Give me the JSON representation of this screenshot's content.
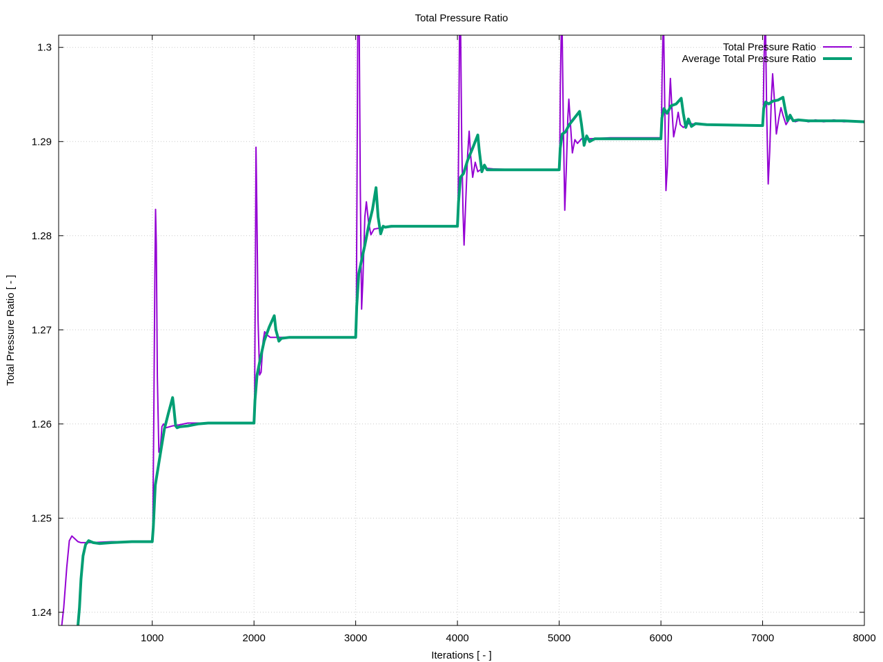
{
  "chart_data": {
    "type": "line",
    "title": "Total Pressure Ratio",
    "xlabel": "Iterations [ - ]",
    "ylabel": "Total Pressure Ratio [ - ]",
    "xlim": [
      80,
      8000
    ],
    "ylim": [
      1.2386,
      1.3013
    ],
    "x_ticks": [
      1000,
      2000,
      3000,
      4000,
      5000,
      6000,
      7000,
      8000
    ],
    "y_ticks": [
      1.24,
      1.25,
      1.26,
      1.27,
      1.28,
      1.29,
      1.3
    ],
    "grid": true,
    "legend_position": "top-right",
    "series": [
      {
        "name": "Total Pressure Ratio",
        "color": "#9400d3",
        "points": [
          [
            100,
            1.2375
          ],
          [
            130,
            1.2405
          ],
          [
            160,
            1.2448
          ],
          [
            185,
            1.2476
          ],
          [
            210,
            1.2481
          ],
          [
            240,
            1.2478
          ],
          [
            270,
            1.2475
          ],
          [
            300,
            1.2474
          ],
          [
            400,
            1.2474
          ],
          [
            600,
            1.2475
          ],
          [
            1000,
            1.2475
          ],
          [
            1005,
            1.2478
          ],
          [
            1015,
            1.26
          ],
          [
            1025,
            1.275
          ],
          [
            1033,
            1.2828
          ],
          [
            1040,
            1.279
          ],
          [
            1050,
            1.265
          ],
          [
            1065,
            1.257
          ],
          [
            1080,
            1.2575
          ],
          [
            1095,
            1.2597
          ],
          [
            1110,
            1.26
          ],
          [
            1135,
            1.2596
          ],
          [
            1170,
            1.2597
          ],
          [
            1200,
            1.2598
          ],
          [
            1260,
            1.2599
          ],
          [
            1350,
            1.2601
          ],
          [
            1500,
            1.2601
          ],
          [
            2000,
            1.2601
          ],
          [
            2005,
            1.2605
          ],
          [
            2013,
            1.275
          ],
          [
            2020,
            1.2894
          ],
          [
            2028,
            1.283
          ],
          [
            2040,
            1.271
          ],
          [
            2055,
            1.2652
          ],
          [
            2070,
            1.2655
          ],
          [
            2090,
            1.2688
          ],
          [
            2105,
            1.2698
          ],
          [
            2125,
            1.2695
          ],
          [
            2160,
            1.2692
          ],
          [
            2250,
            1.2692
          ],
          [
            2500,
            1.2692
          ],
          [
            3000,
            1.2692
          ],
          [
            3005,
            1.27
          ],
          [
            3013,
            1.285
          ],
          [
            3020,
            1.3013
          ],
          [
            3025,
            1.3013
          ],
          [
            3035,
            1.3013
          ],
          [
            3045,
            1.285
          ],
          [
            3058,
            1.2722
          ],
          [
            3070,
            1.275
          ],
          [
            3090,
            1.282
          ],
          [
            3105,
            1.2836
          ],
          [
            3125,
            1.2815
          ],
          [
            3150,
            1.2801
          ],
          [
            3180,
            1.2807
          ],
          [
            3230,
            1.2808
          ],
          [
            3300,
            1.2809
          ],
          [
            3500,
            1.281
          ],
          [
            4000,
            1.281
          ],
          [
            4005,
            1.2815
          ],
          [
            4012,
            1.29
          ],
          [
            4020,
            1.3013
          ],
          [
            4032,
            1.3013
          ],
          [
            4042,
            1.29
          ],
          [
            4055,
            1.2825
          ],
          [
            4065,
            1.279
          ],
          [
            4080,
            1.2832
          ],
          [
            4100,
            1.2885
          ],
          [
            4115,
            1.2911
          ],
          [
            4130,
            1.2885
          ],
          [
            4150,
            1.2862
          ],
          [
            4175,
            1.2878
          ],
          [
            4200,
            1.2868
          ],
          [
            4250,
            1.2872
          ],
          [
            4350,
            1.2871
          ],
          [
            4600,
            1.287
          ],
          [
            5000,
            1.287
          ],
          [
            5005,
            1.2875
          ],
          [
            5012,
            1.296
          ],
          [
            5020,
            1.3013
          ],
          [
            5030,
            1.3013
          ],
          [
            5040,
            1.2925
          ],
          [
            5055,
            1.2827
          ],
          [
            5070,
            1.287
          ],
          [
            5085,
            1.2925
          ],
          [
            5095,
            1.2945
          ],
          [
            5110,
            1.292
          ],
          [
            5130,
            1.2888
          ],
          [
            5155,
            1.2902
          ],
          [
            5180,
            1.2898
          ],
          [
            5220,
            1.2903
          ],
          [
            5300,
            1.2903
          ],
          [
            5500,
            1.2904
          ],
          [
            6000,
            1.2904
          ],
          [
            6005,
            1.291
          ],
          [
            6012,
            1.297
          ],
          [
            6020,
            1.3013
          ],
          [
            6028,
            1.3013
          ],
          [
            6038,
            1.2935
          ],
          [
            6050,
            1.2848
          ],
          [
            6065,
            1.2875
          ],
          [
            6080,
            1.2935
          ],
          [
            6093,
            1.2967
          ],
          [
            6108,
            1.2935
          ],
          [
            6125,
            1.2905
          ],
          [
            6150,
            1.2918
          ],
          [
            6170,
            1.2931
          ],
          [
            6190,
            1.2918
          ],
          [
            6220,
            1.2915
          ],
          [
            6270,
            1.2919
          ],
          [
            6400,
            1.2918
          ],
          [
            6700,
            1.2917
          ],
          [
            7000,
            1.2917
          ],
          [
            7005,
            1.292
          ],
          [
            7012,
            1.298
          ],
          [
            7020,
            1.3013
          ],
          [
            7030,
            1.3013
          ],
          [
            7040,
            1.293
          ],
          [
            7055,
            1.2855
          ],
          [
            7070,
            1.289
          ],
          [
            7085,
            1.2945
          ],
          [
            7098,
            1.2972
          ],
          [
            7115,
            1.2945
          ],
          [
            7135,
            1.2908
          ],
          [
            7160,
            1.2925
          ],
          [
            7180,
            1.2936
          ],
          [
            7200,
            1.2928
          ],
          [
            7230,
            1.2918
          ],
          [
            7270,
            1.2925
          ],
          [
            7320,
            1.2921
          ],
          [
            7380,
            1.2923
          ],
          [
            7450,
            1.2921
          ],
          [
            7520,
            1.2923
          ],
          [
            7600,
            1.2921
          ],
          [
            7700,
            1.2923
          ],
          [
            7800,
            1.2921
          ],
          [
            7900,
            1.2922
          ],
          [
            8000,
            1.2921
          ]
        ]
      },
      {
        "name": "Average Total Pressure Ratio",
        "color": "#009e73",
        "points": [
          [
            270,
            1.2386
          ],
          [
            285,
            1.2405
          ],
          [
            300,
            1.2435
          ],
          [
            320,
            1.246
          ],
          [
            345,
            1.2472
          ],
          [
            375,
            1.2476
          ],
          [
            420,
            1.2474
          ],
          [
            480,
            1.2473
          ],
          [
            600,
            1.2474
          ],
          [
            800,
            1.2475
          ],
          [
            1000,
            1.2475
          ],
          [
            1010,
            1.249
          ],
          [
            1030,
            1.2535
          ],
          [
            1060,
            1.2555
          ],
          [
            1090,
            1.2575
          ],
          [
            1120,
            1.2595
          ],
          [
            1160,
            1.2612
          ],
          [
            1200,
            1.2628
          ],
          [
            1210,
            1.262
          ],
          [
            1230,
            1.2598
          ],
          [
            1245,
            1.2596
          ],
          [
            1270,
            1.2597
          ],
          [
            1350,
            1.2598
          ],
          [
            1450,
            1.26
          ],
          [
            1550,
            1.2601
          ],
          [
            2000,
            1.2601
          ],
          [
            2010,
            1.2625
          ],
          [
            2030,
            1.2652
          ],
          [
            2060,
            1.2668
          ],
          [
            2100,
            1.2688
          ],
          [
            2150,
            1.2703
          ],
          [
            2200,
            1.2715
          ],
          [
            2215,
            1.27
          ],
          [
            2245,
            1.2688
          ],
          [
            2270,
            1.2691
          ],
          [
            2350,
            1.2692
          ],
          [
            3000,
            1.2692
          ],
          [
            3010,
            1.2725
          ],
          [
            3030,
            1.276
          ],
          [
            3060,
            1.2775
          ],
          [
            3090,
            1.279
          ],
          [
            3130,
            1.2812
          ],
          [
            3165,
            1.2828
          ],
          [
            3200,
            1.2851
          ],
          [
            3220,
            1.282
          ],
          [
            3245,
            1.2802
          ],
          [
            3270,
            1.281
          ],
          [
            3290,
            1.2809
          ],
          [
            3350,
            1.281
          ],
          [
            4000,
            1.281
          ],
          [
            4010,
            1.2835
          ],
          [
            4030,
            1.2862
          ],
          [
            4060,
            1.2866
          ],
          [
            4100,
            1.288
          ],
          [
            4150,
            1.2893
          ],
          [
            4200,
            1.2907
          ],
          [
            4215,
            1.289
          ],
          [
            4240,
            1.2868
          ],
          [
            4265,
            1.2875
          ],
          [
            4290,
            1.287
          ],
          [
            4400,
            1.287
          ],
          [
            5000,
            1.287
          ],
          [
            5010,
            1.2893
          ],
          [
            5030,
            1.2908
          ],
          [
            5060,
            1.291
          ],
          [
            5100,
            1.2918
          ],
          [
            5150,
            1.2925
          ],
          [
            5200,
            1.2932
          ],
          [
            5220,
            1.2918
          ],
          [
            5245,
            1.2896
          ],
          [
            5270,
            1.2906
          ],
          [
            5300,
            1.29
          ],
          [
            5350,
            1.2903
          ],
          [
            5450,
            1.2903
          ],
          [
            6000,
            1.2903
          ],
          [
            6010,
            1.2925
          ],
          [
            6030,
            1.2935
          ],
          [
            6060,
            1.293
          ],
          [
            6100,
            1.2938
          ],
          [
            6150,
            1.294
          ],
          [
            6200,
            1.2946
          ],
          [
            6220,
            1.293
          ],
          [
            6245,
            1.2915
          ],
          [
            6270,
            1.2924
          ],
          [
            6300,
            1.2916
          ],
          [
            6340,
            1.2919
          ],
          [
            6450,
            1.2918
          ],
          [
            7000,
            1.2917
          ],
          [
            7010,
            1.2935
          ],
          [
            7030,
            1.2942
          ],
          [
            7060,
            1.294
          ],
          [
            7100,
            1.2943
          ],
          [
            7150,
            1.2944
          ],
          [
            7200,
            1.2947
          ],
          [
            7220,
            1.2935
          ],
          [
            7245,
            1.2922
          ],
          [
            7270,
            1.2928
          ],
          [
            7300,
            1.2922
          ],
          [
            7350,
            1.2923
          ],
          [
            7450,
            1.2922
          ],
          [
            7600,
            1.2922
          ],
          [
            7800,
            1.2922
          ],
          [
            8000,
            1.2921
          ]
        ]
      }
    ]
  }
}
